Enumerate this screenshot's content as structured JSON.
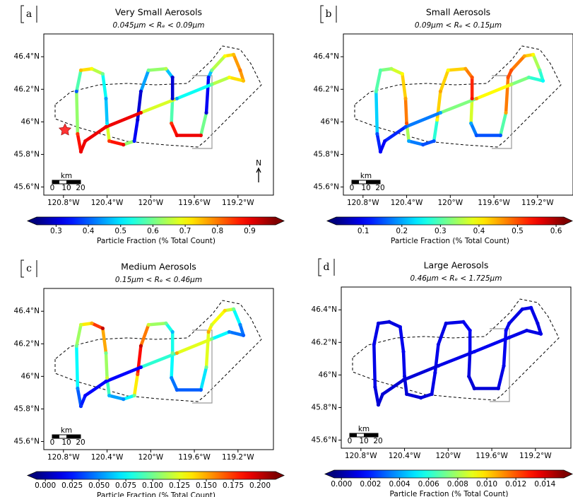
{
  "chart_data": [
    {
      "type": "scatter",
      "panel_label": "a",
      "title": "Very Small Aerosols",
      "subtitle": "0.045μm < Rₑ < 0.09μm",
      "x": [
        -120.64,
        -120.67,
        -120.68,
        -120.64,
        -120.54,
        -120.44,
        -120.41,
        -120.4,
        -120.38,
        -120.25,
        -120.15,
        -120.12,
        -120.09,
        -120.02,
        -119.86,
        -119.8,
        -119.8,
        -119.81,
        -119.76,
        -119.54,
        -119.49,
        -119.47,
        -119.44,
        -119.32,
        -119.24,
        -119.18,
        -119.15,
        -119.28,
        -119.44,
        -119.76,
        -120.09,
        -120.41,
        -120.6,
        -120.64
      ],
      "y": [
        45.817,
        45.926,
        46.187,
        46.317,
        46.326,
        46.295,
        46.143,
        45.991,
        45.882,
        45.86,
        45.882,
        46.013,
        46.187,
        46.317,
        46.326,
        46.273,
        46.143,
        45.991,
        45.917,
        45.917,
        46.056,
        46.273,
        46.317,
        46.404,
        46.413,
        46.317,
        46.252,
        46.273,
        46.23,
        46.143,
        46.056,
        45.969,
        45.882,
        45.817
      ],
      "values": [
        0.9,
        0.85,
        0.4,
        0.75,
        0.7,
        0.6,
        0.45,
        0.5,
        0.85,
        0.9,
        0.35,
        0.3,
        0.3,
        0.6,
        0.65,
        0.3,
        0.3,
        0.85,
        0.9,
        0.9,
        0.3,
        0.35,
        0.6,
        0.7,
        0.75,
        0.8,
        0.75,
        0.7,
        0.6,
        0.45,
        0.9,
        0.9,
        0.9,
        0.9
      ],
      "xlim": [
        -120.98,
        -118.875
      ],
      "ylim": [
        45.55,
        46.54
      ],
      "xticks": [
        {
          "value": -120.8,
          "label": "120.8°W"
        },
        {
          "value": -120.4,
          "label": "120.4°W"
        },
        {
          "value": -120,
          "label": "120°W"
        },
        {
          "value": -119.6,
          "label": "119.6°W"
        },
        {
          "value": -119.2,
          "label": "119.2°W"
        }
      ],
      "yticks": [
        {
          "value": 46.4,
          "label": "46.4°N"
        },
        {
          "value": 46.2,
          "label": "46.2°N"
        },
        {
          "value": 46,
          "label": "46°N"
        },
        {
          "value": 45.8,
          "label": "45.8°N"
        },
        {
          "value": 45.6,
          "label": "45.6°N"
        }
      ],
      "colormap": "jet",
      "clim": [
        0.24,
        0.98
      ],
      "cticks": [
        0.3,
        0.4,
        0.5,
        0.6,
        0.7,
        0.8,
        0.9
      ],
      "colorbar_label": "Particle Fraction (% Total Count)",
      "scalebar": {
        "label": "km",
        "ticks": [
          0,
          10,
          20
        ]
      },
      "north_label": "N"
    },
    {
      "type": "scatter",
      "panel_label": "b",
      "title": "Small Aerosols",
      "subtitle": "0.09μm < Rₑ < 0.15μm",
      "x": [
        -120.64,
        -120.67,
        -120.68,
        -120.64,
        -120.54,
        -120.44,
        -120.41,
        -120.4,
        -120.38,
        -120.25,
        -120.15,
        -120.12,
        -120.09,
        -120.02,
        -119.86,
        -119.8,
        -119.8,
        -119.81,
        -119.76,
        -119.54,
        -119.49,
        -119.47,
        -119.44,
        -119.32,
        -119.24,
        -119.18,
        -119.15,
        -119.28,
        -119.44,
        -119.76,
        -120.09,
        -120.41,
        -120.6,
        -120.64
      ],
      "y": [
        45.817,
        45.926,
        46.187,
        46.317,
        46.326,
        46.295,
        46.143,
        45.991,
        45.882,
        45.86,
        45.882,
        46.013,
        46.187,
        46.317,
        46.326,
        46.273,
        46.143,
        45.991,
        45.917,
        45.917,
        46.056,
        46.273,
        46.317,
        46.404,
        46.413,
        46.317,
        46.252,
        46.273,
        46.23,
        46.143,
        46.056,
        45.969,
        45.882,
        45.817
      ],
      "values": [
        0.1,
        0.15,
        0.3,
        0.3,
        0.35,
        0.4,
        0.45,
        0.5,
        0.2,
        0.15,
        0.15,
        0.4,
        0.45,
        0.4,
        0.45,
        0.5,
        0.55,
        0.2,
        0.15,
        0.15,
        0.45,
        0.5,
        0.5,
        0.45,
        0.4,
        0.3,
        0.25,
        0.3,
        0.35,
        0.45,
        0.2,
        0.15,
        0.1,
        0.1
      ],
      "xlim": [
        -120.98,
        -118.875
      ],
      "ylim": [
        45.55,
        46.54
      ],
      "xticks": [
        {
          "value": -120.8,
          "label": "120.8°W"
        },
        {
          "value": -120.4,
          "label": "120.4°W"
        },
        {
          "value": -120,
          "label": "120°W"
        },
        {
          "value": -119.6,
          "label": "119.6°W"
        },
        {
          "value": -119.2,
          "label": "119.2°W"
        }
      ],
      "yticks": [
        {
          "value": 46.4,
          "label": "46.4°N"
        },
        {
          "value": 46.2,
          "label": "46.2°N"
        },
        {
          "value": 46,
          "label": "46°N"
        },
        {
          "value": 45.8,
          "label": "45.8°N"
        },
        {
          "value": 45.6,
          "label": "45.6°N"
        }
      ],
      "colormap": "jet",
      "clim": [
        0.03,
        0.62
      ],
      "cticks": [
        0.1,
        0.2,
        0.3,
        0.4,
        0.5,
        0.6
      ],
      "colorbar_label": "Particle Fraction (% Total Count)",
      "scalebar": {
        "label": "km",
        "ticks": [
          0,
          10,
          20
        ]
      }
    },
    {
      "type": "scatter",
      "panel_label": "c",
      "title": "Medium Aerosols",
      "subtitle": "0.15μm < Rₑ < 0.46μm",
      "x": [
        -120.64,
        -120.67,
        -120.68,
        -120.64,
        -120.54,
        -120.44,
        -120.41,
        -120.4,
        -120.38,
        -120.25,
        -120.15,
        -120.12,
        -120.09,
        -120.02,
        -119.86,
        -119.8,
        -119.8,
        -119.81,
        -119.76,
        -119.54,
        -119.49,
        -119.47,
        -119.44,
        -119.32,
        -119.24,
        -119.18,
        -119.15,
        -119.28,
        -119.44,
        -119.76,
        -120.09,
        -120.41,
        -120.6,
        -120.64
      ],
      "y": [
        45.817,
        45.926,
        46.187,
        46.317,
        46.326,
        46.295,
        46.143,
        45.991,
        45.882,
        45.86,
        45.882,
        46.013,
        46.187,
        46.317,
        46.326,
        46.273,
        46.143,
        45.991,
        45.917,
        45.917,
        46.056,
        46.273,
        46.317,
        46.404,
        46.413,
        46.317,
        46.252,
        46.273,
        46.23,
        46.143,
        46.056,
        45.969,
        45.882,
        45.817
      ],
      "values": [
        0.03,
        0.05,
        0.1,
        0.12,
        0.15,
        0.2,
        0.1,
        0.12,
        0.06,
        0.05,
        0.1,
        0.17,
        0.2,
        0.12,
        0.1,
        0.06,
        0.1,
        0.05,
        0.04,
        0.04,
        0.1,
        0.15,
        0.12,
        0.14,
        0.1,
        0.05,
        0.04,
        0.05,
        0.1,
        0.15,
        0.02,
        0.02,
        0.02,
        0.03
      ],
      "xlim": [
        -120.98,
        -118.875
      ],
      "ylim": [
        45.55,
        46.54
      ],
      "xticks": [
        {
          "value": -120.8,
          "label": "120.8°W"
        },
        {
          "value": -120.4,
          "label": "120.4°W"
        },
        {
          "value": -120,
          "label": "120°W"
        },
        {
          "value": -119.6,
          "label": "119.6°W"
        },
        {
          "value": -119.2,
          "label": "119.2°W"
        }
      ],
      "yticks": [
        {
          "value": 46.4,
          "label": "46.4°N"
        },
        {
          "value": 46.2,
          "label": "46.2°N"
        },
        {
          "value": 46,
          "label": "46°N"
        },
        {
          "value": 45.8,
          "label": "45.8°N"
        },
        {
          "value": 45.6,
          "label": "45.6°N"
        }
      ],
      "colormap": "jet",
      "clim": [
        -0.008,
        0.2145
      ],
      "cticks": [
        {
          "value": 0,
          "label": "0.000"
        },
        {
          "value": 0.025,
          "label": "0.025"
        },
        {
          "value": 0.05,
          "label": "0.050"
        },
        {
          "value": 0.075,
          "label": "0.075"
        },
        {
          "value": 0.1,
          "label": "0.100"
        },
        {
          "value": 0.125,
          "label": "0.125"
        },
        {
          "value": 0.15,
          "label": "0.150"
        },
        {
          "value": 0.175,
          "label": "0.175"
        },
        {
          "value": 0.2,
          "label": "0.200"
        }
      ],
      "colorbar_label": "Particle Fraction (% Total Count)",
      "scalebar": {
        "label": "km",
        "ticks": [
          0,
          10,
          20
        ]
      }
    },
    {
      "type": "scatter",
      "panel_label": "d",
      "title": "Large Aerosols",
      "subtitle": "0.46μm < Rₑ < 1.725μm",
      "x": [
        -120.64,
        -120.67,
        -120.68,
        -120.64,
        -120.54,
        -120.44,
        -120.41,
        -120.4,
        -120.38,
        -120.25,
        -120.15,
        -120.12,
        -120.09,
        -120.02,
        -119.86,
        -119.8,
        -119.8,
        -119.81,
        -119.76,
        -119.54,
        -119.49,
        -119.47,
        -119.44,
        -119.32,
        -119.24,
        -119.18,
        -119.15,
        -119.28,
        -119.44,
        -119.76,
        -120.09,
        -120.41,
        -120.6,
        -120.64
      ],
      "y": [
        45.817,
        45.926,
        46.187,
        46.317,
        46.326,
        46.295,
        46.143,
        45.991,
        45.882,
        45.86,
        45.882,
        46.013,
        46.187,
        46.317,
        46.326,
        46.273,
        46.143,
        45.991,
        45.917,
        45.917,
        46.056,
        46.273,
        46.317,
        46.404,
        46.413,
        46.317,
        46.252,
        46.273,
        46.23,
        46.143,
        46.056,
        45.969,
        45.882,
        45.817
      ],
      "values": [
        0.0008,
        0.001,
        0.0012,
        0.001,
        0.0009,
        0.0011,
        0.0013,
        0.001,
        0.0008,
        0.0009,
        0.001,
        0.0012,
        0.0011,
        0.001,
        0.0012,
        0.0014,
        0.0011,
        0.0009,
        0.0008,
        0.0009,
        0.0012,
        0.0013,
        0.0011,
        0.001,
        0.0012,
        0.001,
        0.0011,
        0.001,
        0.0012,
        0.0013,
        0.0009,
        0.0008,
        0.0008,
        0.0008
      ],
      "xlim": [
        -120.98,
        -118.875
      ],
      "ylim": [
        45.55,
        46.54
      ],
      "xticks": [
        {
          "value": -120.8,
          "label": "120.8°W"
        },
        {
          "value": -120.4,
          "label": "120.4°W"
        },
        {
          "value": -120,
          "label": "120°W"
        },
        {
          "value": -119.6,
          "label": "119.6°W"
        },
        {
          "value": -119.2,
          "label": "119.2°W"
        }
      ],
      "yticks": [
        {
          "value": 46.4,
          "label": "46.4°N"
        },
        {
          "value": 46.2,
          "label": "46.2°N"
        },
        {
          "value": 46,
          "label": "46°N"
        },
        {
          "value": 45.8,
          "label": "45.8°N"
        },
        {
          "value": 45.6,
          "label": "45.6°N"
        }
      ],
      "colormap": "jet",
      "clim": [
        -0.0005,
        0.0153
      ],
      "cticks": [
        {
          "value": 0,
          "label": "0.000"
        },
        {
          "value": 0.002,
          "label": "0.002"
        },
        {
          "value": 0.004,
          "label": "0.004"
        },
        {
          "value": 0.006,
          "label": "0.006"
        },
        {
          "value": 0.008,
          "label": "0.008"
        },
        {
          "value": 0.01,
          "label": "0.010"
        },
        {
          "value": 0.012,
          "label": "0.012"
        },
        {
          "value": 0.014,
          "label": "0.014"
        }
      ],
      "colorbar_label": "Particle Fraction (% Total Count)",
      "scalebar": {
        "label": "km",
        "ticks": [
          0,
          10,
          20
        ]
      }
    }
  ]
}
